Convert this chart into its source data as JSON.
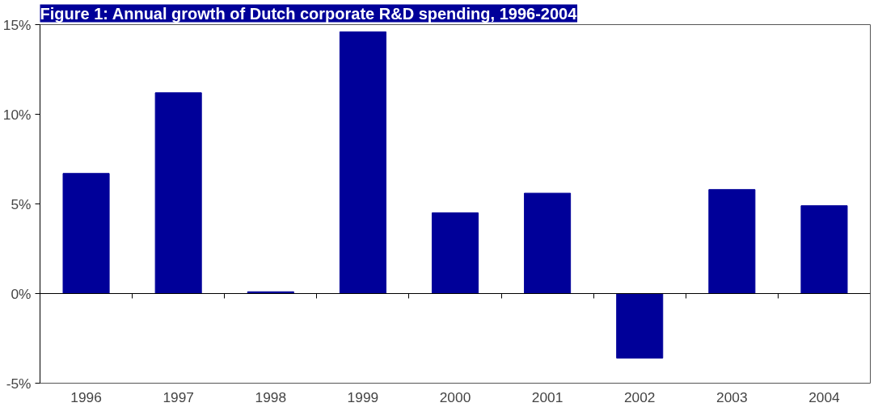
{
  "chart_data": {
    "type": "bar",
    "title": "Figure 1: Annual growth of Dutch corporate R&D spending, 1996-2004",
    "categories": [
      "1996",
      "1997",
      "1998",
      "1999",
      "2000",
      "2001",
      "2002",
      "2003",
      "2004"
    ],
    "values": [
      6.7,
      11.2,
      0.1,
      14.6,
      4.5,
      5.6,
      -3.6,
      5.8,
      4.9
    ],
    "color": "#000099",
    "ylim": [
      -5,
      15
    ],
    "yticks": [
      {
        "value": -5,
        "label": "-5%"
      },
      {
        "value": 0,
        "label": "0%"
      },
      {
        "value": 5,
        "label": "5%"
      },
      {
        "value": 10,
        "label": "10%"
      },
      {
        "value": 15,
        "label": "15%"
      }
    ]
  }
}
